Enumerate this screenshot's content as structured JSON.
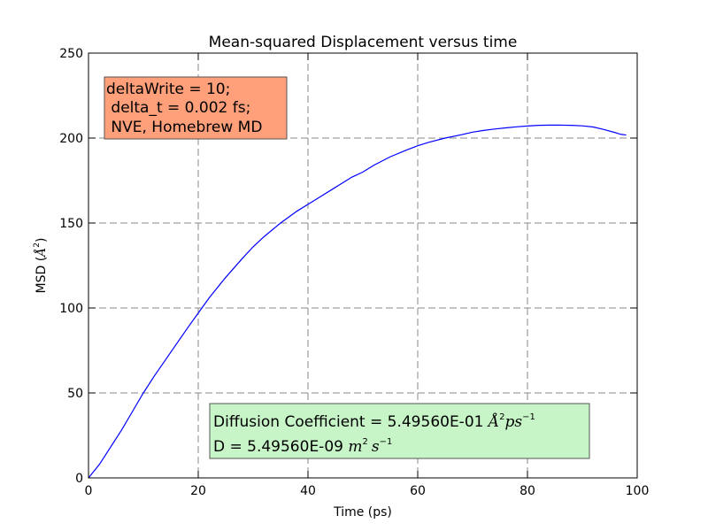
{
  "chart_data": {
    "type": "line",
    "title": "Mean-squared Displacement versus time",
    "xlabel": "Time (ps)",
    "ylabel_text": "MSD (",
    "ylabel_unit": "Å",
    "ylabel_power": "2",
    "ylabel_close": ")",
    "xlim": [
      0,
      100
    ],
    "ylim": [
      0,
      250
    ],
    "xticks": [
      0,
      20,
      40,
      60,
      80,
      100
    ],
    "yticks": [
      0,
      50,
      100,
      150,
      200,
      250
    ],
    "grid": true,
    "line_color": "#0000ff",
    "series": [
      {
        "x": [
          0,
          2,
          4,
          6,
          8,
          10,
          12,
          15,
          18,
          20,
          22,
          25,
          28,
          30,
          32,
          35,
          38,
          40,
          42,
          45,
          48,
          50,
          52,
          55,
          58,
          60,
          62,
          65,
          68,
          70,
          72,
          74,
          76,
          78,
          80,
          82,
          84,
          86,
          88,
          90,
          92,
          94,
          96,
          97,
          98
        ],
        "y": [
          0,
          8,
          18,
          28,
          39,
          50,
          60,
          74,
          88,
          97,
          106,
          118,
          129,
          136,
          142,
          150,
          157,
          161,
          165,
          171,
          177,
          180,
          184,
          189,
          193,
          195.5,
          197.5,
          200,
          202,
          203.5,
          204.5,
          205.3,
          206,
          206.6,
          207.1,
          207.5,
          207.6,
          207.6,
          207.5,
          207.2,
          206.5,
          205,
          203.2,
          202.2,
          201.8
        ]
      }
    ],
    "annotation_top": {
      "lines": [
        "deltaWrite = 10;",
        " delta_t = 0.002 fs;",
        " NVE, Homebrew MD"
      ],
      "color": "#ffa07a"
    },
    "annotation_bottom": {
      "line1_text": "Diffusion Coefficient = 5.49560E-01 ",
      "line1_unit": "Å",
      "line1_unit_power": "2",
      "line1_ps": "ps",
      "line1_ps_power": "−1",
      "line2_text": "D = 5.49560E-09 ",
      "line2_m": "m",
      "line2_m_power": "2",
      "line2_s": "s",
      "line2_s_power": "−1",
      "color": "#c8f5c8"
    }
  }
}
